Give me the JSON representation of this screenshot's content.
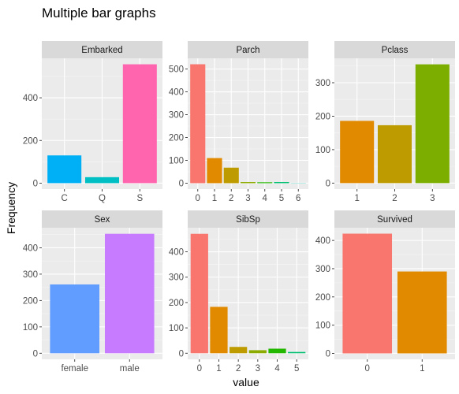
{
  "chart_data": {
    "type": "bar",
    "title": "Multiple bar graphs",
    "xlabel": "value",
    "ylabel": "Frequency",
    "layout": "facet_wrap 3 columns, free scales",
    "grid": true,
    "panel_background": "#ebebeb",
    "strip_background": "#d9d9d9",
    "panels": [
      {
        "name": "Embarked",
        "categories": [
          "C",
          "Q",
          "S"
        ],
        "values": [
          130,
          28,
          557
        ],
        "colors": [
          "#00b0f6",
          "#00bfc4",
          "#ff65af"
        ],
        "ylim": [
          -28,
          585
        ],
        "yticks": [
          0,
          200,
          400
        ]
      },
      {
        "name": "Parch",
        "categories": [
          "0",
          "1",
          "2",
          "3",
          "4",
          "5",
          "6"
        ],
        "values": [
          521,
          110,
          68,
          5,
          4,
          5,
          1
        ],
        "colors": [
          "#f8766d",
          "#e18a00",
          "#be9c00",
          "#8cab00",
          "#24b700",
          "#00be70",
          "#00c1ab"
        ],
        "ylim": [
          -26,
          547
        ],
        "yticks": [
          0,
          100,
          200,
          300,
          400,
          500
        ]
      },
      {
        "name": "Pclass",
        "categories": [
          "1",
          "2",
          "3"
        ],
        "values": [
          186,
          173,
          355
        ],
        "colors": [
          "#e18a00",
          "#be9c00",
          "#7cae00"
        ],
        "ylim": [
          -18,
          373
        ],
        "yticks": [
          0,
          100,
          200,
          300
        ]
      },
      {
        "name": "Sex",
        "categories": [
          "female",
          "male"
        ],
        "values": [
          261,
          453
        ],
        "colors": [
          "#619cff",
          "#c77cff"
        ],
        "ylim": [
          -23,
          476
        ],
        "yticks": [
          0,
          100,
          200,
          300,
          400
        ]
      },
      {
        "name": "SibSp",
        "categories": [
          "0",
          "1",
          "2",
          "3",
          "4",
          "5"
        ],
        "values": [
          471,
          183,
          25,
          12,
          18,
          5
        ],
        "colors": [
          "#f8766d",
          "#e18a00",
          "#be9c00",
          "#8cab00",
          "#24b700",
          "#00be70"
        ],
        "ylim": [
          -24,
          495
        ],
        "yticks": [
          0,
          100,
          200,
          300,
          400
        ]
      },
      {
        "name": "Survived",
        "categories": [
          "0",
          "1"
        ],
        "values": [
          424,
          290
        ],
        "colors": [
          "#f8766d",
          "#e18a00"
        ],
        "ylim": [
          -21,
          445
        ],
        "yticks": [
          0,
          100,
          200,
          300,
          400
        ]
      }
    ]
  }
}
